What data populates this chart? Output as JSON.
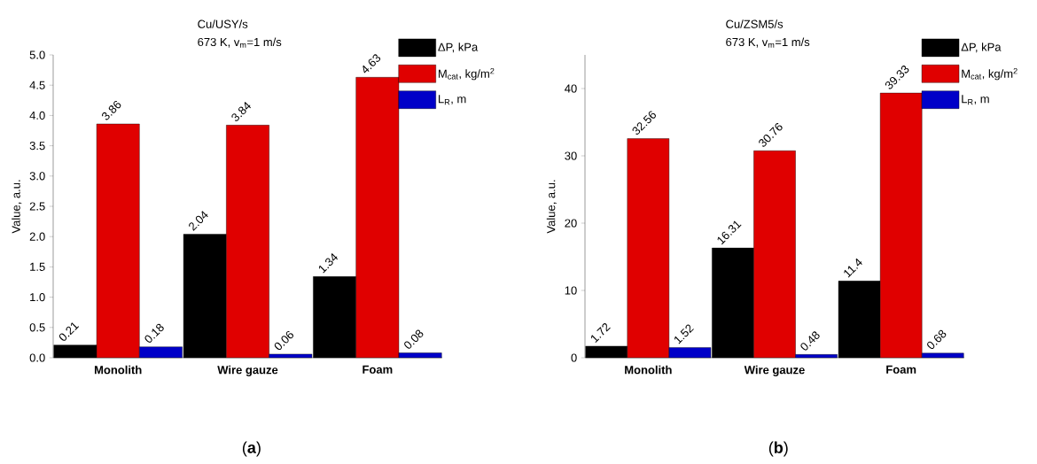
{
  "chart_data": [
    {
      "type": "bar",
      "title": "Cu/USY/s",
      "subtitle": "673 K, v$_{m}$=1 m/s",
      "ylabel": "Value, a.u.",
      "categories": [
        "Monolith",
        "Wire gauze",
        "Foam"
      ],
      "series": [
        {
          "name": "ΔP, kPa",
          "color": "#000000",
          "values": [
            0.21,
            2.04,
            1.34
          ],
          "value_labels": [
            "0.21",
            "2.04",
            "1.34"
          ]
        },
        {
          "name": "M$_{cat}$, kg/m$^{2}$",
          "color": "#e00000",
          "values": [
            3.86,
            3.84,
            4.63
          ],
          "value_labels": [
            "3.86",
            "3.84",
            "4.63"
          ]
        },
        {
          "name": "L$_{R}$, m",
          "color": "#0000c8",
          "values": [
            0.18,
            0.06,
            0.08
          ],
          "value_labels": [
            "0.18",
            "0.06",
            "0.08"
          ]
        }
      ],
      "ylim": [
        0,
        5
      ],
      "yticks": [
        {
          "value": 0,
          "label": "0.0"
        },
        {
          "value": 0.5,
          "label": "0.5"
        },
        {
          "value": 1,
          "label": "1.0"
        },
        {
          "value": 1.5,
          "label": "1.5"
        },
        {
          "value": 2,
          "label": "2.0"
        },
        {
          "value": 2.5,
          "label": "2.5"
        },
        {
          "value": 3,
          "label": "3.0"
        },
        {
          "value": 3.5,
          "label": "3.5"
        },
        {
          "value": 4,
          "label": "4.0"
        },
        {
          "value": 4.5,
          "label": "4.5"
        },
        {
          "value": 5,
          "label": "5.0"
        }
      ],
      "legend": "top right",
      "annotations": [
        "(**a**)"
      ]
    },
    {
      "type": "bar",
      "title": "Cu/ZSM5/s",
      "subtitle": "673 K, v$_{m}$=1 m/s",
      "ylabel": "Value, a.u.",
      "categories": [
        "Monolith",
        "Wire gauze",
        "Foam"
      ],
      "series": [
        {
          "name": "ΔP, kPa",
          "color": "#000000",
          "values": [
            1.72,
            16.31,
            11.4
          ],
          "value_labels": [
            "1.72",
            "16.31",
            "11.4"
          ]
        },
        {
          "name": "M$_{cat}$, kg/m$^{2}$",
          "color": "#e00000",
          "values": [
            32.56,
            30.76,
            39.33
          ],
          "value_labels": [
            "32.56",
            "30.76",
            "39.33"
          ]
        },
        {
          "name": "L$_{R}$, m",
          "color": "#0000c8",
          "values": [
            1.52,
            0.48,
            0.68
          ],
          "value_labels": [
            "1.52",
            "0.48",
            "0.68"
          ]
        }
      ],
      "ylim": [
        0,
        45
      ],
      "yticks": [
        0,
        10,
        20,
        30,
        40
      ],
      "legend": "top right",
      "annotations": [
        "(**b**)"
      ]
    }
  ]
}
